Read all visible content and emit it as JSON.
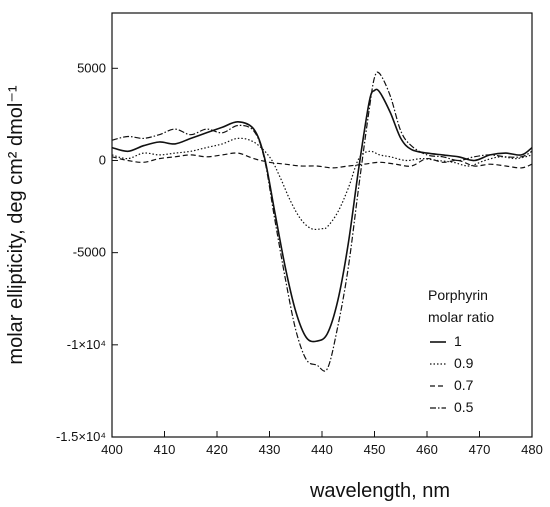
{
  "chart_data": {
    "type": "line",
    "xlabel": "wavelength, nm",
    "ylabel": "molar ellipticity, deg cm² dmol⁻¹",
    "xlim": [
      400,
      480
    ],
    "ylim": [
      -15000,
      8000
    ],
    "x_ticks": [
      400,
      410,
      420,
      430,
      440,
      450,
      460,
      470,
      480
    ],
    "x_tick_labels": [
      "400",
      "410",
      "420",
      "430",
      "440",
      "450",
      "460",
      "470",
      "480"
    ],
    "y_ticks": [
      5000,
      0,
      -5000,
      -10000,
      -15000
    ],
    "y_tick_labels": [
      "5000",
      "0",
      "-5000",
      "-1×10⁴",
      "-1.5×10⁴"
    ],
    "grid": false,
    "legend": {
      "title_line1": "Porphyrin",
      "title_line2": "molar ratio",
      "position": "bottom-right"
    },
    "series": [
      {
        "name": "1",
        "dash": "solid",
        "x": [
          400,
          403,
          406,
          409,
          412,
          415,
          418,
          421,
          424,
          427,
          429,
          431,
          433,
          435,
          437,
          439,
          441,
          443,
          445,
          447,
          449,
          450,
          451,
          453,
          455,
          457,
          460,
          463,
          466,
          469,
          472,
          475,
          478,
          480
        ],
        "y": [
          700,
          500,
          800,
          1000,
          900,
          1200,
          1500,
          1800,
          2100,
          1700,
          200,
          -2800,
          -5800,
          -8200,
          -9600,
          -9800,
          -9400,
          -7600,
          -4500,
          -400,
          3200,
          3800,
          3700,
          2600,
          1200,
          600,
          400,
          300,
          200,
          0,
          300,
          400,
          300,
          700
        ]
      },
      {
        "name": "0.9",
        "dash": "dotted",
        "x": [
          400,
          403,
          406,
          409,
          412,
          415,
          418,
          421,
          424,
          427,
          430,
          432,
          434,
          436,
          438,
          440,
          441,
          443,
          445,
          447,
          449,
          451,
          453,
          456,
          459,
          462,
          465,
          468,
          471,
          474,
          477,
          480
        ],
        "y": [
          300,
          100,
          400,
          300,
          400,
          500,
          700,
          900,
          1200,
          1000,
          200,
          -900,
          -2200,
          -3200,
          -3700,
          -3700,
          -3600,
          -2800,
          -1500,
          100,
          500,
          300,
          200,
          0,
          100,
          0,
          -100,
          -300,
          0,
          200,
          100,
          300
        ]
      },
      {
        "name": "0.7",
        "dash": "dashed",
        "x": [
          400,
          403,
          406,
          409,
          412,
          415,
          418,
          421,
          424,
          427,
          430,
          433,
          436,
          439,
          442,
          445,
          448,
          451,
          454,
          457,
          460,
          463,
          466,
          469,
          472,
          475,
          478,
          480
        ],
        "y": [
          200,
          0,
          -100,
          100,
          200,
          300,
          200,
          300,
          400,
          100,
          -100,
          -200,
          -300,
          -300,
          -400,
          -300,
          -200,
          -100,
          -200,
          -300,
          100,
          -100,
          0,
          -300,
          -200,
          -300,
          -400,
          -200
        ]
      },
      {
        "name": "0.5",
        "dash": "dash-dot",
        "x": [
          400,
          403,
          406,
          409,
          412,
          415,
          418,
          421,
          424,
          427,
          429,
          431,
          433,
          435,
          437,
          439,
          441,
          443,
          445,
          447,
          449,
          450,
          451,
          453,
          455,
          457,
          460,
          463,
          466,
          469,
          472,
          475,
          478,
          480
        ],
        "y": [
          1100,
          1300,
          1200,
          1400,
          1700,
          1400,
          1700,
          1500,
          1900,
          1600,
          100,
          -3200,
          -6400,
          -9200,
          -10800,
          -11100,
          -11300,
          -9000,
          -5800,
          -1400,
          2800,
          4500,
          4700,
          3500,
          1600,
          800,
          300,
          200,
          0,
          200,
          300,
          200,
          200,
          500
        ]
      }
    ]
  }
}
